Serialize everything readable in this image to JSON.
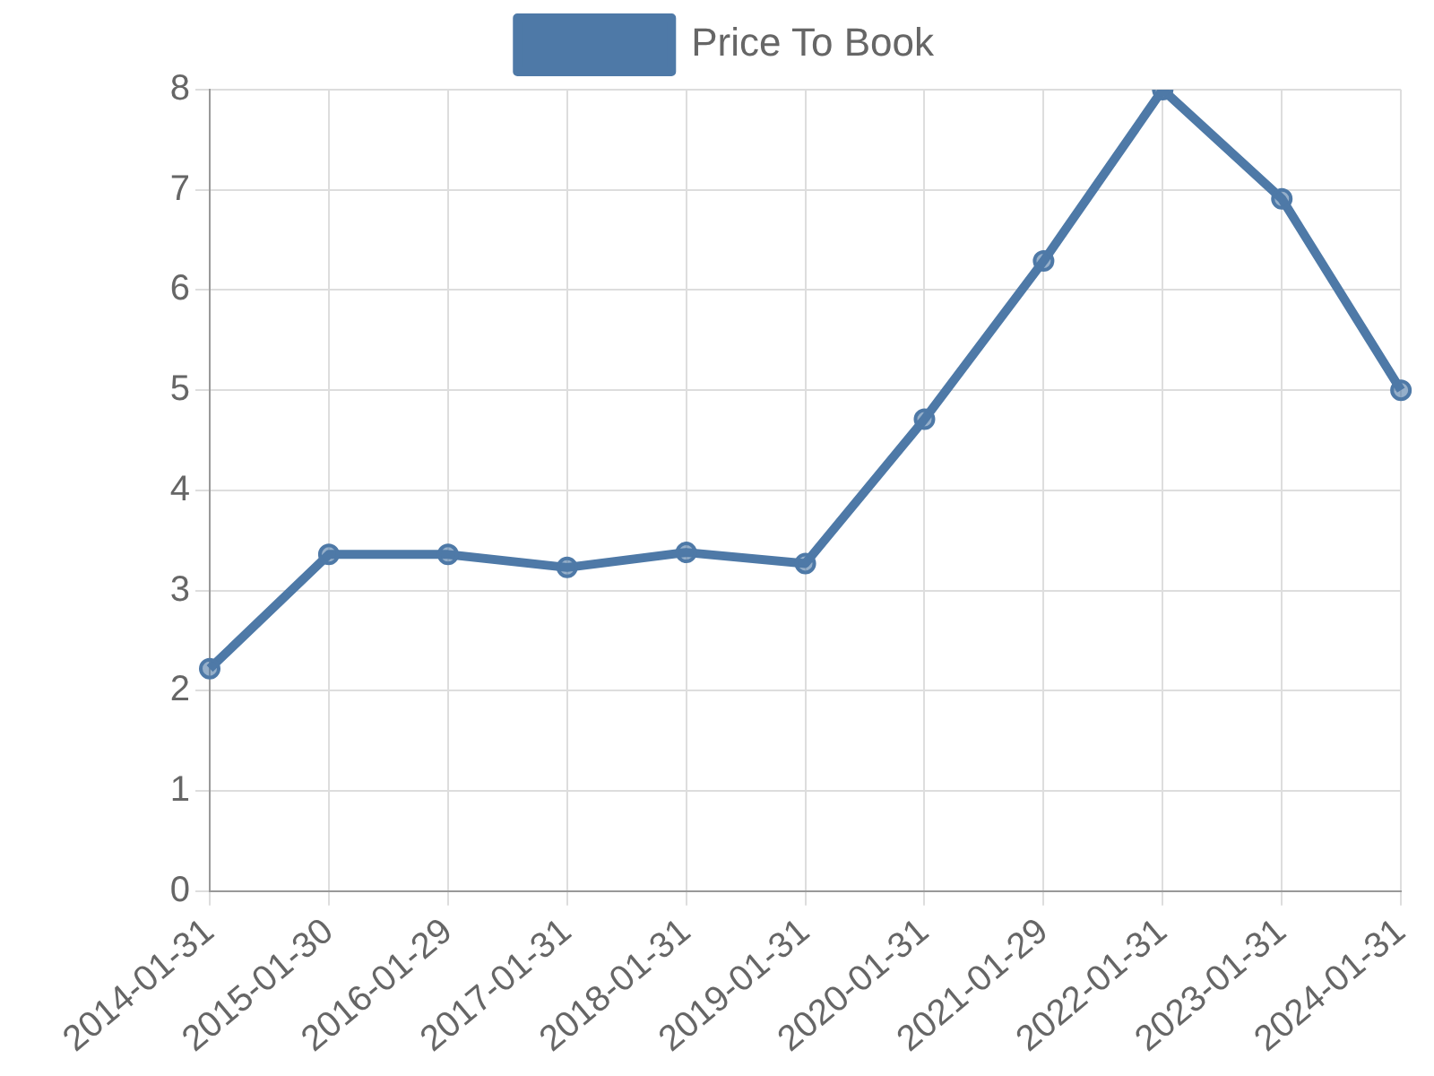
{
  "chart_data": {
    "type": "line",
    "categories": [
      "2014-01-31",
      "2015-01-30",
      "2016-01-29",
      "2017-01-31",
      "2018-01-31",
      "2019-01-31",
      "2020-01-31",
      "2021-01-29",
      "2022-01-31",
      "2023-01-31",
      "2024-01-31"
    ],
    "series": [
      {
        "name": "Price To Book",
        "color": "#4e79a7",
        "values": [
          2.22,
          3.36,
          3.36,
          3.23,
          3.38,
          3.27,
          4.71,
          6.29,
          8.0,
          6.91,
          5.0
        ]
      }
    ],
    "ylim": [
      0,
      8
    ],
    "yticks": [
      0,
      1,
      2,
      3,
      4,
      5,
      6,
      7,
      8
    ],
    "grid": true,
    "legend": "top",
    "marker": "circle"
  }
}
